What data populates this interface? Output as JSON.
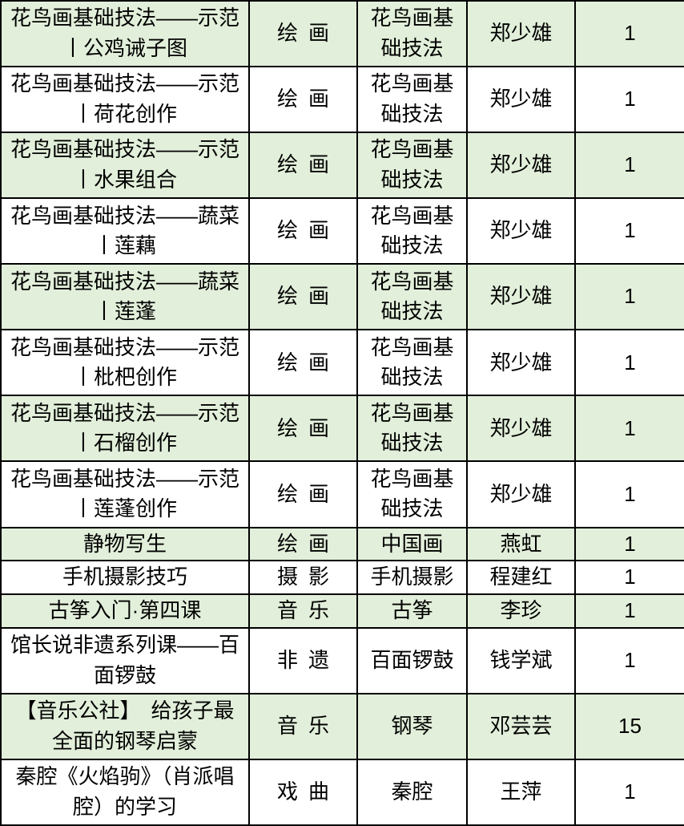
{
  "colors": {
    "row_shade": "#e2efda",
    "row_plain": "#ffffff",
    "border": "#000000",
    "text": "#000000"
  },
  "rows": [
    {
      "title": "花鸟画基础技法——示范丨公鸡诫子图",
      "category": "绘 画",
      "subcategory": "花鸟画基础技法",
      "teacher": "郑少雄",
      "count": "1",
      "shaded": true,
      "tall": true
    },
    {
      "title": "花鸟画基础技法——示范丨荷花创作",
      "category": "绘 画",
      "subcategory": "花鸟画基础技法",
      "teacher": "郑少雄",
      "count": "1",
      "shaded": false,
      "tall": true
    },
    {
      "title": "花鸟画基础技法——示范丨水果组合",
      "category": "绘 画",
      "subcategory": "花鸟画基础技法",
      "teacher": "郑少雄",
      "count": "1",
      "shaded": true,
      "tall": true
    },
    {
      "title": "花鸟画基础技法——蔬菜丨莲藕",
      "category": "绘 画",
      "subcategory": "花鸟画基础技法",
      "teacher": "郑少雄",
      "count": "1",
      "shaded": false,
      "tall": true
    },
    {
      "title": "花鸟画基础技法——蔬菜丨莲蓬",
      "category": "绘 画",
      "subcategory": "花鸟画基础技法",
      "teacher": "郑少雄",
      "count": "1",
      "shaded": true,
      "tall": true
    },
    {
      "title": "花鸟画基础技法——示范丨枇杷创作",
      "category": "绘 画",
      "subcategory": "花鸟画基础技法",
      "teacher": "郑少雄",
      "count": "1",
      "shaded": false,
      "tall": true
    },
    {
      "title": "花鸟画基础技法——示范丨石榴创作",
      "category": "绘 画",
      "subcategory": "花鸟画基础技法",
      "teacher": "郑少雄",
      "count": "1",
      "shaded": true,
      "tall": true
    },
    {
      "title": "花鸟画基础技法——示范丨莲蓬创作",
      "category": "绘 画",
      "subcategory": "花鸟画基础技法",
      "teacher": "郑少雄",
      "count": "1",
      "shaded": false,
      "tall": true
    },
    {
      "title": "静物写生",
      "category": "绘 画",
      "subcategory": "中国画",
      "teacher": "燕虹",
      "count": "1",
      "shaded": true,
      "tall": false
    },
    {
      "title": "手机摄影技巧",
      "category": "摄 影",
      "subcategory": "手机摄影",
      "teacher": "程建红",
      "count": "1",
      "shaded": false,
      "tall": false
    },
    {
      "title": "古筝入门·第四课",
      "category": "音 乐",
      "subcategory": "古筝",
      "teacher": "李珍",
      "count": "1",
      "shaded": true,
      "tall": false
    },
    {
      "title": "馆长说非遗系列课——百面锣鼓",
      "category": "非 遗",
      "subcategory": "百面锣鼓",
      "teacher": "钱学斌",
      "count": "1",
      "shaded": false,
      "tall": true
    },
    {
      "title": "【音乐公社】　给孩子最全面的钢琴启蒙",
      "category": "音 乐",
      "subcategory": "钢琴",
      "teacher": "邓芸芸",
      "count": "15",
      "shaded": true,
      "tall": true
    },
    {
      "title": "秦腔《火焰驹》（肖派唱腔）的学习",
      "category": "戏 曲",
      "subcategory": "秦腔",
      "teacher": "王萍",
      "count": "1",
      "shaded": false,
      "tall": true
    }
  ]
}
